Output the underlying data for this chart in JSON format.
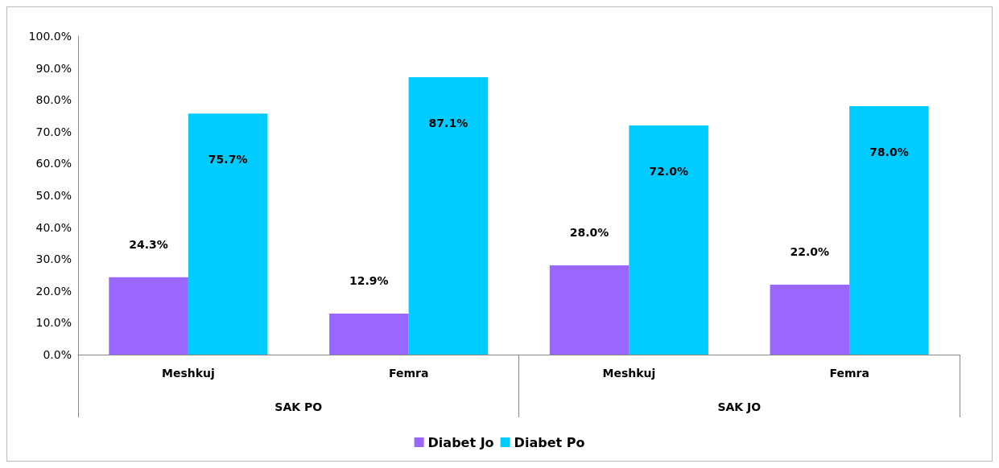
{
  "chart_data": {
    "type": "bar",
    "categories": [
      "Meshkuj",
      "Femra",
      "Meshkuj",
      "Femra"
    ],
    "series": [
      {
        "name": "Diabet Jo",
        "color": "#9966ff",
        "values": [
          24.3,
          12.9,
          28.0,
          22.0
        ],
        "value_labels": [
          "24.3%",
          "12.9%",
          "28.0%",
          "22.0%"
        ]
      },
      {
        "name": "Diabet Po",
        "color": "#00ccff",
        "values": [
          75.7,
          87.1,
          72.0,
          78.0
        ],
        "value_labels": [
          "75.7%",
          "87.1%",
          "72.0%",
          "78.0%"
        ]
      }
    ],
    "annotations": [
      "SAK PO",
      "SAK JO"
    ],
    "ylim": [
      0,
      100
    ],
    "yticks": [
      {
        "value": 0,
        "label": "0.0%"
      },
      {
        "value": 10,
        "label": "10.0%"
      },
      {
        "value": 20,
        "label": "20.0%"
      },
      {
        "value": 30,
        "label": "30.0%"
      },
      {
        "value": 40,
        "label": "40.0%"
      },
      {
        "value": 50,
        "label": "50.0%"
      },
      {
        "value": 60,
        "label": "60.0%"
      },
      {
        "value": 70,
        "label": "70.0%"
      },
      {
        "value": 80,
        "label": "80.0%"
      },
      {
        "value": 90,
        "label": "90.0%"
      },
      {
        "value": 100,
        "label": "100.0%"
      }
    ],
    "grid": false,
    "legend": "bottom"
  }
}
